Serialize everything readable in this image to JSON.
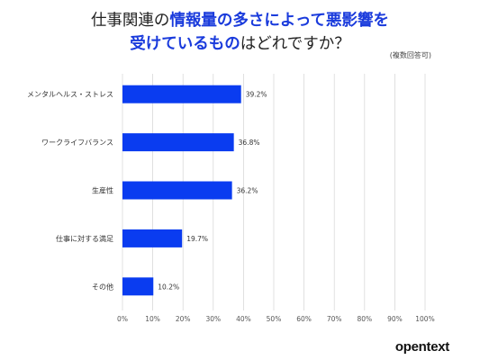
{
  "title": {
    "line1_a": "仕事関連の",
    "line1_b": "情報量の多さによって悪影響を",
    "line2_a": "受けているもの",
    "line2_b": "はどれですか？"
  },
  "note": "(複数回答可)",
  "logo": "opentext",
  "colors": {
    "bar": "#0a3cf0",
    "grid": "#d9d9d9",
    "title_highlight": "#1a3bdc"
  },
  "chart_data": {
    "type": "bar",
    "orientation": "horizontal",
    "categories": [
      "メンタルヘルス・ストレス",
      "ワークライフバランス",
      "生産性",
      "仕事に対する満足",
      "その他"
    ],
    "values": [
      39.2,
      36.8,
      36.2,
      19.7,
      10.2
    ],
    "value_labels": [
      "39.2%",
      "36.8%",
      "36.2%",
      "19.7%",
      "10.2%"
    ],
    "xlim": [
      0,
      100
    ],
    "xticks": [
      "0%",
      "10%",
      "20%",
      "30%",
      "40%",
      "50%",
      "60%",
      "70%",
      "80%",
      "90%",
      "100%"
    ],
    "grid": true
  }
}
